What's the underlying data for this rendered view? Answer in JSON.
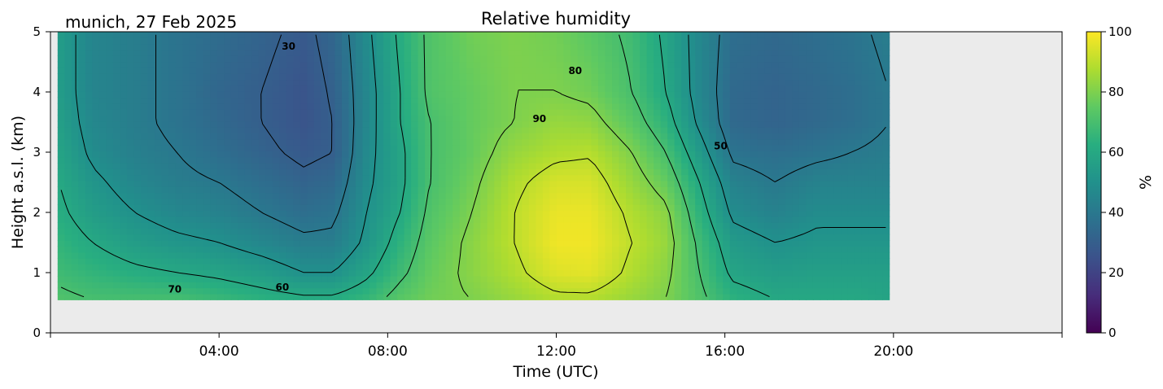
{
  "header": {
    "location_date": "munich, 27 Feb 2025"
  },
  "chart_data": {
    "type": "heatmap",
    "title": "Relative humidity",
    "xlabel": "Time (UTC)",
    "ylabel": "Height a.s.l. (km)",
    "xlim_hours": [
      0,
      24
    ],
    "ylim_km": [
      0,
      5
    ],
    "data_extent": {
      "time_hours": [
        0.17,
        19.9
      ],
      "height_km": [
        0.55,
        5
      ]
    },
    "x_ticks": [
      {
        "hour": 4,
        "label": "04:00"
      },
      {
        "hour": 8,
        "label": "08:00"
      },
      {
        "hour": 12,
        "label": "12:00"
      },
      {
        "hour": 16,
        "label": "16:00"
      },
      {
        "hour": 20,
        "label": "20:00"
      }
    ],
    "y_ticks": [
      0,
      1,
      2,
      3,
      4,
      5
    ],
    "colorbar": {
      "label": "%",
      "range": [
        0,
        100
      ],
      "ticks": [
        0,
        20,
        40,
        60,
        80,
        100
      ],
      "colormap": "viridis"
    },
    "contour_labels": [
      {
        "text": "30",
        "hour": 5.65,
        "km": 4.7
      },
      {
        "text": "80",
        "hour": 12.45,
        "km": 4.3
      },
      {
        "text": "90",
        "hour": 11.6,
        "km": 3.5
      },
      {
        "text": "50",
        "hour": 15.9,
        "km": 3.05
      },
      {
        "text": "70",
        "hour": 2.95,
        "km": 0.67
      },
      {
        "text": "60",
        "hour": 5.5,
        "km": 0.7
      }
    ],
    "profiles": [
      {
        "hour": 0.2,
        "rh": [
          72,
          68,
          65,
          62,
          60,
          58,
          56,
          55,
          55
        ]
      },
      {
        "hour": 1.0,
        "rh": [
          70,
          65,
          60,
          55,
          52,
          48,
          46,
          45,
          45
        ]
      },
      {
        "hour": 2.0,
        "rh": [
          70,
          62,
          55,
          50,
          46,
          43,
          42,
          42,
          42
        ]
      },
      {
        "hour": 3.0,
        "rh": [
          70,
          60,
          52,
          46,
          42,
          40,
          38,
          38,
          38
        ]
      },
      {
        "hour": 4.0,
        "rh": [
          67,
          58,
          50,
          44,
          40,
          36,
          34,
          33,
          35
        ]
      },
      {
        "hour": 5.0,
        "rh": [
          64,
          55,
          46,
          40,
          36,
          32,
          30,
          30,
          32
        ]
      },
      {
        "hour": 6.0,
        "rh": [
          62,
          50,
          42,
          36,
          32,
          28,
          26,
          26,
          28
        ]
      },
      {
        "hour": 6.7,
        "rh": [
          62,
          50,
          42,
          38,
          34,
          30,
          30,
          31,
          33
        ]
      },
      {
        "hour": 7.5,
        "rh": [
          66,
          58,
          52,
          50,
          48,
          47,
          46,
          46,
          48
        ]
      },
      {
        "hour": 8.3,
        "rh": [
          74,
          68,
          64,
          60,
          58,
          58,
          60,
          60,
          62
        ]
      },
      {
        "hour": 9.0,
        "rh": [
          78,
          76,
          74,
          72,
          70,
          70,
          70,
          72,
          72
        ]
      },
      {
        "hour": 10.0,
        "rh": [
          80,
          82,
          82,
          80,
          78,
          76,
          76,
          76,
          78
        ]
      },
      {
        "hour": 11.0,
        "rh": [
          84,
          88,
          90,
          90,
          88,
          84,
          80,
          80,
          80
        ]
      },
      {
        "hour": 12.0,
        "rh": [
          88,
          95,
          98,
          97,
          94,
          88,
          84,
          80,
          78
        ]
      },
      {
        "hour": 12.8,
        "rh": [
          88,
          96,
          98,
          97,
          94,
          89,
          83,
          78,
          74
        ]
      },
      {
        "hour": 13.8,
        "rh": [
          84,
          88,
          90,
          88,
          84,
          80,
          74,
          70,
          68
        ]
      },
      {
        "hour": 14.6,
        "rh": [
          80,
          82,
          84,
          82,
          76,
          70,
          64,
          60,
          58
        ]
      },
      {
        "hour": 15.4,
        "rh": [
          72,
          70,
          68,
          64,
          60,
          54,
          48,
          46,
          46
        ]
      },
      {
        "hour": 16.2,
        "rh": [
          64,
          58,
          54,
          48,
          44,
          38,
          34,
          34,
          36
        ]
      },
      {
        "hour": 17.2,
        "rh": [
          60,
          55,
          50,
          44,
          40,
          36,
          32,
          32,
          34
        ]
      },
      {
        "hour": 18.2,
        "rh": [
          60,
          56,
          52,
          48,
          44,
          38,
          34,
          34,
          36
        ]
      },
      {
        "hour": 19.0,
        "rh": [
          60,
          56,
          52,
          48,
          44,
          40,
          36,
          36,
          38
        ]
      },
      {
        "hour": 19.9,
        "rh": [
          58,
          56,
          52,
          48,
          44,
          42,
          40,
          40,
          42
        ]
      }
    ],
    "profile_heights_km": [
      0.55,
      1.0,
      1.5,
      2.0,
      2.5,
      3.0,
      3.5,
      4.0,
      5.0
    ]
  }
}
